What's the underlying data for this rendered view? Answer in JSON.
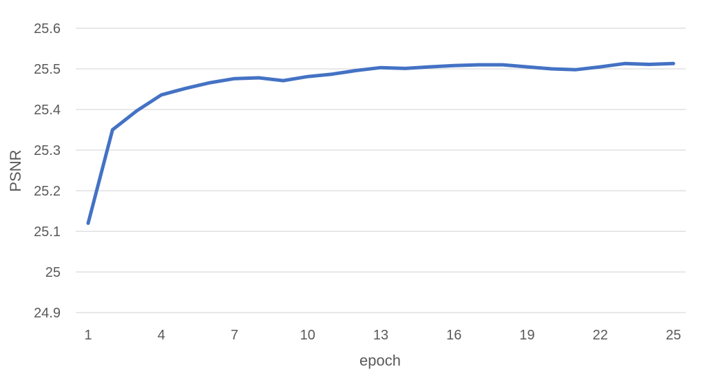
{
  "chart_data": {
    "type": "line",
    "title": "",
    "xlabel": "epoch",
    "ylabel": "PSNR",
    "x": [
      1,
      2,
      3,
      4,
      5,
      6,
      7,
      8,
      9,
      10,
      11,
      12,
      13,
      14,
      15,
      16,
      17,
      18,
      19,
      20,
      21,
      22,
      23,
      24,
      25
    ],
    "x_tick_labels": [
      "1",
      "4",
      "7",
      "10",
      "13",
      "16",
      "19",
      "22",
      "25"
    ],
    "y_tick_labels": [
      "24.9",
      "25",
      "25.1",
      "25.2",
      "25.3",
      "25.4",
      "25.5",
      "25.6"
    ],
    "ylim": [
      24.9,
      25.6
    ],
    "xlim": [
      1,
      25
    ],
    "grid": true,
    "series": [
      {
        "color": "#4472C4",
        "values": [
          25.12,
          25.35,
          25.397,
          25.436,
          25.452,
          25.466,
          25.476,
          25.478,
          25.471,
          25.481,
          25.487,
          25.496,
          25.503,
          25.501,
          25.505,
          25.508,
          25.51,
          25.51,
          25.505,
          25.5,
          25.498,
          25.505,
          25.513,
          25.511,
          25.513
        ]
      }
    ]
  }
}
